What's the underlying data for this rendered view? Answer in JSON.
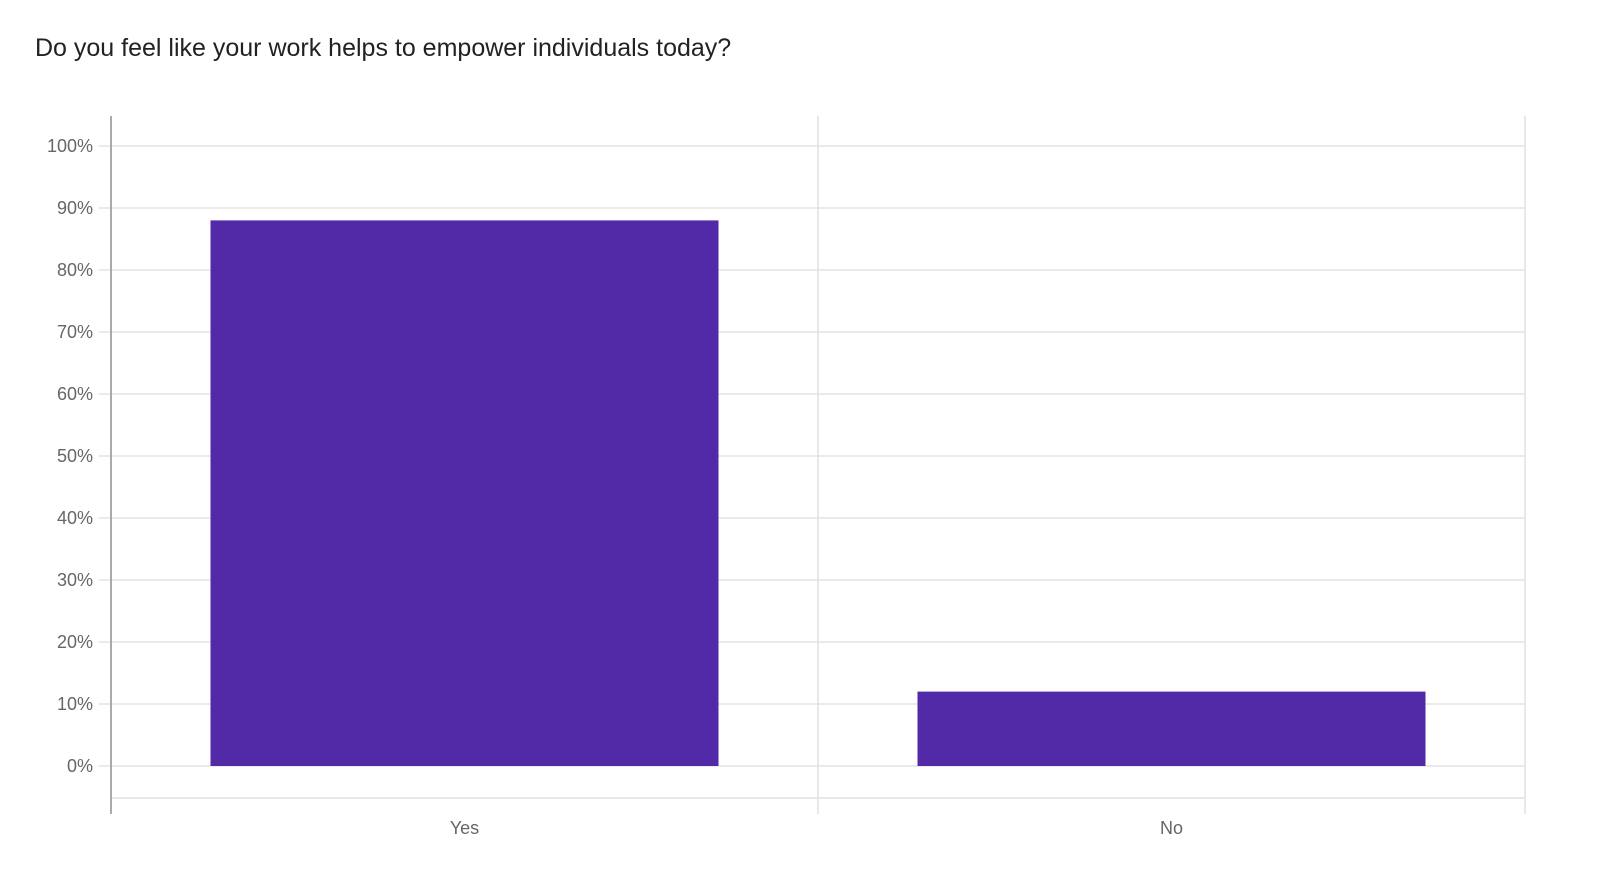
{
  "chart_data": {
    "type": "bar",
    "title": "Do you feel like your work helps to empower individuals today?",
    "categories": [
      "Yes",
      "No"
    ],
    "values": [
      88,
      12
    ],
    "ylim": [
      0,
      100
    ],
    "yticks": [
      "0%",
      "10%",
      "20%",
      "30%",
      "40%",
      "50%",
      "60%",
      "70%",
      "80%",
      "90%",
      "100%"
    ],
    "unit": "%",
    "grid": true,
    "bar_color": "#5229a7"
  }
}
